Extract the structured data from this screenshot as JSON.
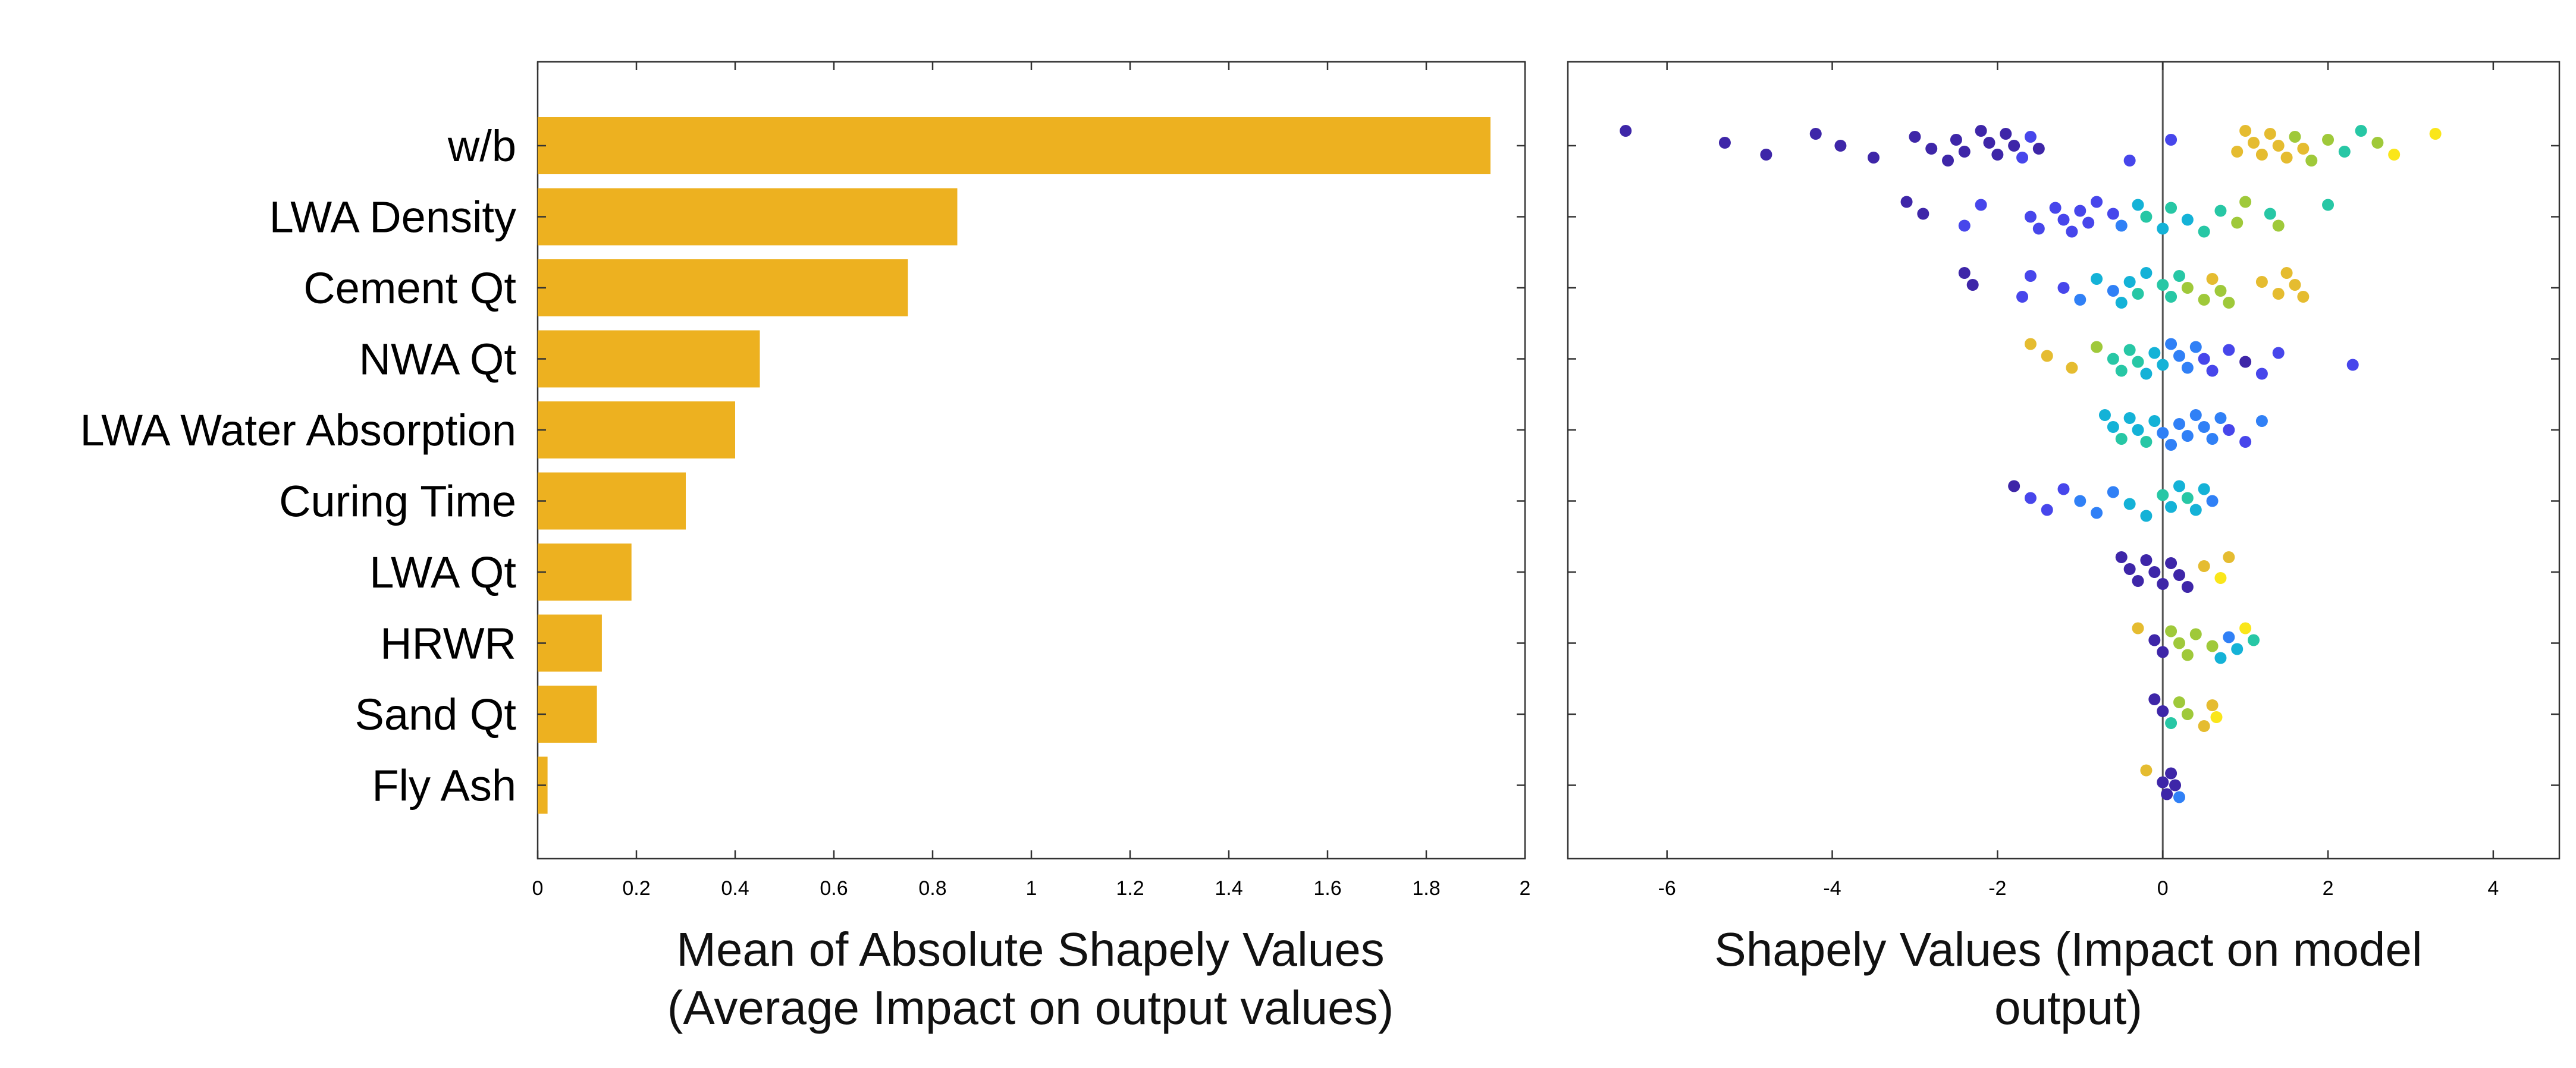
{
  "colors": {
    "bar": "#EDB120",
    "axis": "#333333",
    "zero_line": "#555555",
    "colormap": [
      "#3E26A8",
      "#4746EB",
      "#3080F6",
      "#14B2D7",
      "#27C7A5",
      "#9FC93A",
      "#E5BC30",
      "#FAE61A"
    ]
  },
  "left_caption": {
    "line1": "Mean of Absolute Shapely Values",
    "line2": "(Average Impact on output values)"
  },
  "right_caption": {
    "line1": "Shapely Values (Impact on model",
    "line2": "output)"
  },
  "chart_data": [
    {
      "type": "bar",
      "orientation": "horizontal",
      "categories": [
        "w/b",
        "LWA Density",
        "Cement Qt",
        "NWA Qt",
        "LWA Water Absorption",
        "Curing Time",
        "LWA Qt",
        "HRWR",
        "Sand Qt",
        "Fly Ash"
      ],
      "values": [
        1.93,
        0.85,
        0.75,
        0.45,
        0.4,
        0.3,
        0.19,
        0.13,
        0.12,
        0.02
      ],
      "xlim": [
        0,
        2
      ],
      "xticks": [
        "0",
        "0.2",
        "0.4",
        "0.6",
        "0.8",
        "1",
        "1.2",
        "1.4",
        "1.6",
        "1.8",
        "2"
      ],
      "xlabel": "Mean of Absolute Shapely Values (Average Impact on output values)",
      "grid": false,
      "color": "#EDB120"
    },
    {
      "type": "scatter",
      "subtype": "swarm",
      "categories": [
        "w/b",
        "LWA Density",
        "Cement Qt",
        "NWA Qt",
        "LWA Water Absorption",
        "Curing Time",
        "LWA Qt",
        "HRWR",
        "Sand Qt",
        "Fly Ash"
      ],
      "xlim": [
        -7.2,
        4.8
      ],
      "xticks": [
        "-6",
        "-4",
        "-2",
        "0",
        "2",
        "4"
      ],
      "xlabel": "Shapely Values (Impact on model output)",
      "color_scale": "feature value (low = blue, high = yellow)",
      "grid": false,
      "series": [
        {
          "category": "w/b",
          "points": [
            [
              -6.5,
              0.02
            ],
            [
              -5.3,
              0.05
            ],
            [
              -4.8,
              0.05
            ],
            [
              -4.2,
              0.05
            ],
            [
              -3.9,
              0.05
            ],
            [
              -3.5,
              0.05
            ],
            [
              -3.0,
              0.04
            ],
            [
              -2.8,
              0.04
            ],
            [
              -2.6,
              0.05
            ],
            [
              -2.5,
              0.04
            ],
            [
              -2.4,
              0.05
            ],
            [
              -2.2,
              0.06
            ],
            [
              -2.1,
              0.06
            ],
            [
              -2.0,
              0.07
            ],
            [
              -1.9,
              0.06
            ],
            [
              -1.8,
              0.06
            ],
            [
              -1.7,
              0.08
            ],
            [
              -1.6,
              0.08
            ],
            [
              -1.5,
              0.07
            ],
            [
              -0.4,
              0.1
            ],
            [
              0.1,
              0.1
            ],
            [
              0.9,
              0.8
            ],
            [
              1.0,
              0.85
            ],
            [
              1.1,
              0.9
            ],
            [
              1.2,
              0.85
            ],
            [
              1.3,
              0.9
            ],
            [
              1.4,
              0.8
            ],
            [
              1.5,
              0.9
            ],
            [
              1.6,
              0.75
            ],
            [
              1.7,
              0.8
            ],
            [
              1.8,
              0.7
            ],
            [
              2.0,
              0.75
            ],
            [
              2.2,
              0.6
            ],
            [
              2.4,
              0.55
            ],
            [
              2.6,
              0.65
            ],
            [
              2.8,
              0.95
            ],
            [
              3.3,
              1.0
            ]
          ]
        },
        {
          "category": "LWA Density",
          "points": [
            [
              -3.1,
              0.05
            ],
            [
              -2.9,
              0.05
            ],
            [
              -2.4,
              0.1
            ],
            [
              -2.2,
              0.2
            ],
            [
              -1.6,
              0.1
            ],
            [
              -1.5,
              0.1
            ],
            [
              -1.3,
              0.08
            ],
            [
              -1.2,
              0.1
            ],
            [
              -1.1,
              0.15
            ],
            [
              -1.0,
              0.1
            ],
            [
              -0.9,
              0.1
            ],
            [
              -0.8,
              0.12
            ],
            [
              -0.6,
              0.2
            ],
            [
              -0.5,
              0.3
            ],
            [
              -0.3,
              0.45
            ],
            [
              -0.2,
              0.5
            ],
            [
              0.0,
              0.45
            ],
            [
              0.1,
              0.5
            ],
            [
              0.3,
              0.4
            ],
            [
              0.5,
              0.6
            ],
            [
              0.7,
              0.6
            ],
            [
              0.9,
              0.7
            ],
            [
              1.0,
              0.75
            ],
            [
              1.3,
              0.6
            ],
            [
              1.4,
              0.65
            ],
            [
              2.0,
              0.55
            ]
          ]
        },
        {
          "category": "Cement Qt",
          "points": [
            [
              -2.4,
              0.05
            ],
            [
              -2.3,
              0.05
            ],
            [
              -1.7,
              0.1
            ],
            [
              -1.6,
              0.1
            ],
            [
              -1.2,
              0.2
            ],
            [
              -1.0,
              0.3
            ],
            [
              -0.8,
              0.4
            ],
            [
              -0.6,
              0.35
            ],
            [
              -0.5,
              0.45
            ],
            [
              -0.4,
              0.4
            ],
            [
              -0.3,
              0.5
            ],
            [
              -0.2,
              0.45
            ],
            [
              0.0,
              0.5
            ],
            [
              0.1,
              0.55
            ],
            [
              0.2,
              0.6
            ],
            [
              0.3,
              0.65
            ],
            [
              0.5,
              0.75
            ],
            [
              0.6,
              0.8
            ],
            [
              0.7,
              0.75
            ],
            [
              0.8,
              0.7
            ],
            [
              1.2,
              0.85
            ],
            [
              1.4,
              0.9
            ],
            [
              1.5,
              0.85
            ],
            [
              1.6,
              0.8
            ],
            [
              1.7,
              0.82
            ]
          ]
        },
        {
          "category": "NWA Qt",
          "points": [
            [
              -1.6,
              0.9
            ],
            [
              -1.4,
              0.85
            ],
            [
              -1.1,
              0.8
            ],
            [
              -0.8,
              0.7
            ],
            [
              -0.6,
              0.6
            ],
            [
              -0.5,
              0.55
            ],
            [
              -0.4,
              0.5
            ],
            [
              -0.3,
              0.5
            ],
            [
              -0.2,
              0.45
            ],
            [
              -0.1,
              0.45
            ],
            [
              0.0,
              0.4
            ],
            [
              0.1,
              0.35
            ],
            [
              0.2,
              0.35
            ],
            [
              0.3,
              0.3
            ],
            [
              0.4,
              0.25
            ],
            [
              0.5,
              0.2
            ],
            [
              0.6,
              0.15
            ],
            [
              0.8,
              0.1
            ],
            [
              1.0,
              0.05
            ],
            [
              1.2,
              0.1
            ],
            [
              1.4,
              0.15
            ],
            [
              2.3,
              0.2
            ]
          ]
        },
        {
          "category": "LWA Water Absorption",
          "points": [
            [
              -0.7,
              0.4
            ],
            [
              -0.6,
              0.45
            ],
            [
              -0.5,
              0.5
            ],
            [
              -0.4,
              0.45
            ],
            [
              -0.3,
              0.4
            ],
            [
              -0.2,
              0.5
            ],
            [
              -0.1,
              0.45
            ],
            [
              0.0,
              0.35
            ],
            [
              0.1,
              0.3
            ],
            [
              0.2,
              0.3
            ],
            [
              0.3,
              0.25
            ],
            [
              0.4,
              0.3
            ],
            [
              0.5,
              0.25
            ],
            [
              0.6,
              0.3
            ],
            [
              0.7,
              0.25
            ],
            [
              0.8,
              0.1
            ],
            [
              1.0,
              0.2
            ],
            [
              1.2,
              0.25
            ]
          ]
        },
        {
          "category": "Curing Time",
          "points": [
            [
              -1.8,
              0.05
            ],
            [
              -1.6,
              0.1
            ],
            [
              -1.4,
              0.15
            ],
            [
              -1.2,
              0.2
            ],
            [
              -1.0,
              0.25
            ],
            [
              -0.8,
              0.3
            ],
            [
              -0.6,
              0.35
            ],
            [
              -0.4,
              0.4
            ],
            [
              -0.2,
              0.45
            ],
            [
              0.0,
              0.5
            ],
            [
              0.1,
              0.45
            ],
            [
              0.2,
              0.4
            ],
            [
              0.3,
              0.5
            ],
            [
              0.4,
              0.45
            ],
            [
              0.5,
              0.4
            ],
            [
              0.6,
              0.35
            ]
          ]
        },
        {
          "category": "LWA Qt",
          "points": [
            [
              -0.5,
              0.05
            ],
            [
              -0.4,
              0.05
            ],
            [
              -0.3,
              0.05
            ],
            [
              -0.2,
              0.05
            ],
            [
              -0.1,
              0.05
            ],
            [
              0.0,
              0.05
            ],
            [
              0.1,
              0.05
            ],
            [
              0.2,
              0.05
            ],
            [
              0.3,
              0.05
            ],
            [
              0.5,
              0.85
            ],
            [
              0.7,
              1.0
            ],
            [
              0.8,
              0.9
            ]
          ]
        },
        {
          "category": "HRWR",
          "points": [
            [
              -0.3,
              0.9
            ],
            [
              -0.1,
              0.05
            ],
            [
              0.0,
              0.05
            ],
            [
              0.1,
              0.7
            ],
            [
              0.2,
              0.7
            ],
            [
              0.3,
              0.75
            ],
            [
              0.4,
              0.7
            ],
            [
              0.6,
              0.75
            ],
            [
              0.7,
              0.4
            ],
            [
              0.8,
              0.35
            ],
            [
              0.9,
              0.4
            ],
            [
              1.0,
              0.95
            ],
            [
              1.1,
              0.5
            ]
          ]
        },
        {
          "category": "Sand Qt",
          "points": [
            [
              -0.1,
              0.05
            ],
            [
              0.0,
              0.05
            ],
            [
              0.1,
              0.6
            ],
            [
              0.2,
              0.7
            ],
            [
              0.3,
              0.65
            ],
            [
              0.5,
              0.85
            ],
            [
              0.6,
              0.9
            ],
            [
              0.65,
              0.95
            ]
          ]
        },
        {
          "category": "Fly Ash",
          "points": [
            [
              -0.2,
              0.9
            ],
            [
              0.0,
              0.05
            ],
            [
              0.05,
              0.05
            ],
            [
              0.1,
              0.05
            ],
            [
              0.15,
              0.05
            ],
            [
              0.2,
              0.3
            ]
          ]
        }
      ]
    }
  ]
}
